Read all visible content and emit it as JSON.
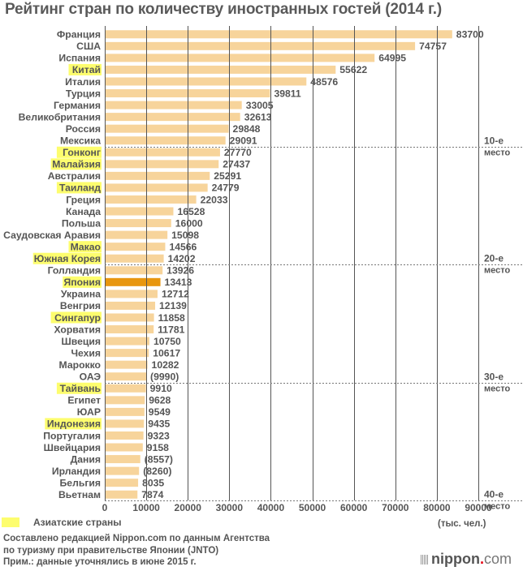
{
  "chart_data": {
    "type": "bar",
    "orientation": "horizontal",
    "title": "Рейтинг стран по количеству иностранных гостей (2014 г.)",
    "xlabel": "(тыс. чел.)",
    "ylabel": "",
    "xlim": [
      0,
      90000
    ],
    "xticks": [
      "0",
      "10000",
      "20000",
      "30000",
      "40000",
      "50000",
      "60000",
      "70000",
      "80000",
      "90000"
    ],
    "xtick_values": [
      0,
      10000,
      20000,
      30000,
      40000,
      50000,
      60000,
      70000,
      80000,
      90000
    ],
    "grid": true,
    "categories": [
      "Франция",
      "США",
      "Испания",
      "Китай",
      "Италия",
      "Турция",
      "Германия",
      "Великобритания",
      "Россия",
      "Мексика",
      "Гонконг",
      "Малайзия",
      "Австралия",
      "Таиланд",
      "Греция",
      "Канада",
      "Польша",
      "Саудовская Аравия",
      "Макао",
      "Южная Корея",
      "Голландия",
      "Япония",
      "Украина",
      "Венгрия",
      "Сингапур",
      "Хорватия",
      "Швеция",
      "Чехия",
      "Марокко",
      "ОАЭ",
      "Тайвань",
      "Египет",
      "ЮАР",
      "Индонезия",
      "Португалия",
      "Швейцария",
      "Дания",
      "Ирландия",
      "Бельгия",
      "Вьетнам"
    ],
    "values": [
      83700,
      74757,
      64995,
      55622,
      48576,
      39811,
      33005,
      32613,
      29848,
      29091,
      27770,
      27437,
      25291,
      24779,
      22033,
      16528,
      16000,
      15098,
      14566,
      14202,
      13926,
      13413,
      12712,
      12139,
      11858,
      11781,
      10750,
      10617,
      10282,
      9990,
      9910,
      9628,
      9549,
      9435,
      9323,
      9158,
      8557,
      8260,
      8035,
      7874
    ],
    "value_labels": [
      "83700",
      "74757",
      "64995",
      "55622",
      "48576",
      "39811",
      "33005",
      "32613",
      "29848",
      "29091",
      "27770",
      "27437",
      "25291",
      "24779",
      "22033",
      "16528",
      "16000",
      "15098",
      "14566",
      "14202",
      "13926",
      "13413",
      "12712",
      "12139",
      "11858",
      "11781",
      "10750",
      "10617",
      "10282",
      "(9990)",
      "9910",
      "9628",
      "9549",
      "9435",
      "9323",
      "9158",
      "(8557)",
      "(8260)",
      "8035",
      "7874"
    ],
    "asian": [
      false,
      false,
      false,
      true,
      false,
      false,
      false,
      false,
      false,
      false,
      true,
      true,
      false,
      true,
      false,
      false,
      false,
      false,
      true,
      true,
      false,
      true,
      false,
      false,
      true,
      false,
      false,
      false,
      false,
      false,
      true,
      false,
      false,
      true,
      false,
      false,
      false,
      false,
      false,
      false
    ],
    "highlight_index": 21,
    "rank_markers": [
      {
        "after_rank": 10,
        "line1": "10-е",
        "line2": "место"
      },
      {
        "after_rank": 20,
        "line1": "20-е",
        "line2": "место"
      },
      {
        "after_rank": 30,
        "line1": "30-е",
        "line2": "место"
      },
      {
        "after_rank": 40,
        "line1": "40-е",
        "line2": "место"
      }
    ],
    "colors": {
      "bar": "#f7d49b",
      "highlight_bar": "#e8960e",
      "asia_label_bg": "#fdfd6e",
      "grid": "#555555",
      "text": "#555555"
    },
    "legend": {
      "label": "Азиатские страны",
      "color": "#fdfd6e",
      "position": "bottom-left"
    }
  },
  "footer": {
    "source_line1": "Составлено редакцией Nippon.com по данным Агентства",
    "source_line2": "по туризму при правительстве Японии (JNTO)",
    "note": "Прим.: данные уточнялись в июне 2015 г.",
    "logo_main": "nippon",
    "logo_dot": ".",
    "logo_suffix": "com"
  }
}
